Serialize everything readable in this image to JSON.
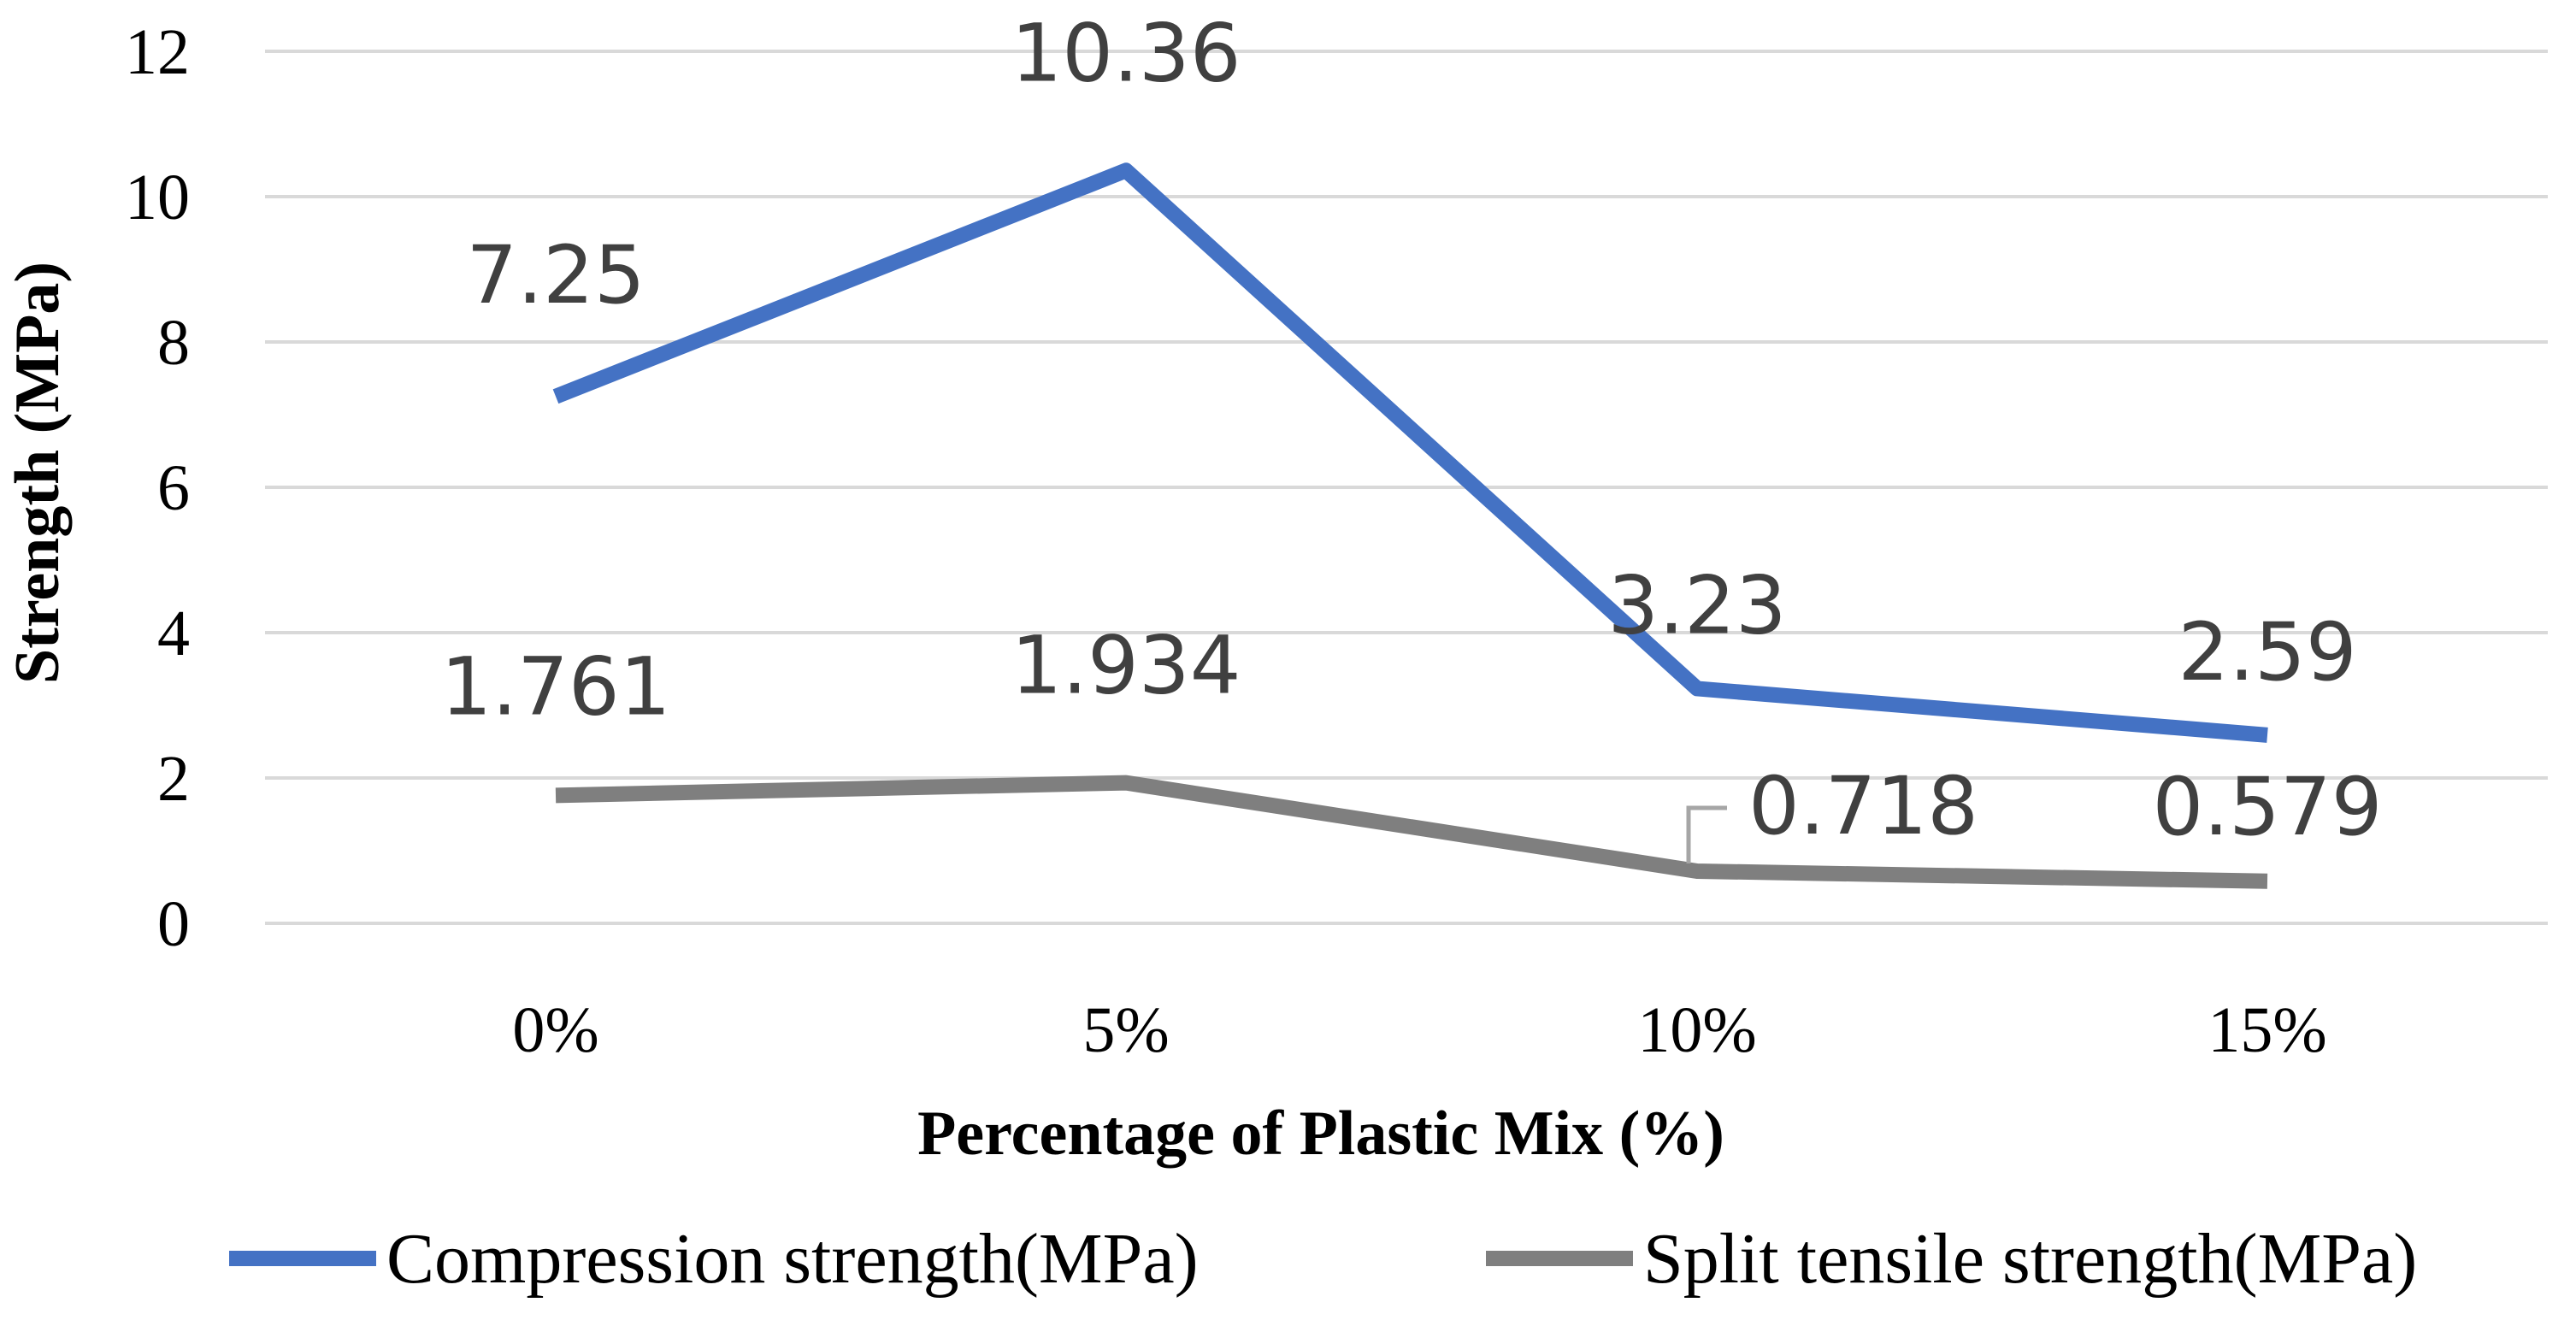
{
  "chart_data": {
    "type": "line",
    "title": "",
    "xlabel": "Percentage of Plastic Mix (%)",
    "ylabel": "Strength (MPa)",
    "categories": [
      "0%",
      "5%",
      "10%",
      "15%"
    ],
    "ylim": [
      0,
      12
    ],
    "yticks": [
      0,
      2,
      4,
      6,
      8,
      10,
      12
    ],
    "grid": true,
    "legend_position": "bottom",
    "series": [
      {
        "name": "Compression strength(MPa)",
        "color": "#4472c4",
        "values": [
          7.25,
          10.36,
          3.23,
          2.59
        ],
        "labels": [
          "7.25",
          "10.36",
          "3.23",
          "2.59"
        ]
      },
      {
        "name": "Split tensile strength(MPa)",
        "color": "#7f7f7f",
        "values": [
          1.761,
          1.934,
          0.718,
          0.579
        ],
        "labels": [
          "1.761",
          "1.934",
          "0.718",
          "0.579"
        ]
      }
    ]
  }
}
